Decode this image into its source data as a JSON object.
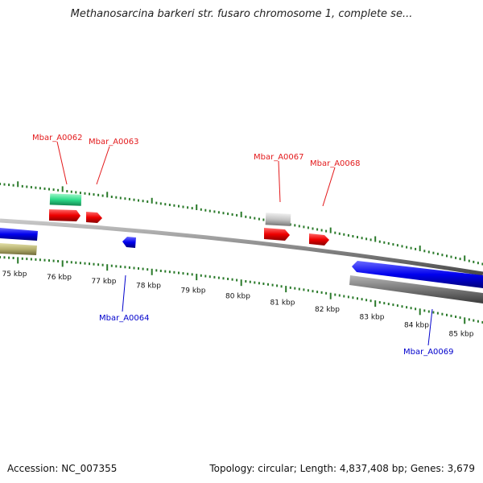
{
  "title": "Methanosarcina barkeri str. fusaro chromosome 1, complete se...",
  "footer": {
    "accession": "Accession: NC_007355",
    "topology": "Topology: circular;",
    "length": "Length: 4,837,408 bp;",
    "genes": "Genes: 3,679"
  },
  "colors": {
    "backbone": "#8a8a8a",
    "forward_gene": "#e31a1c",
    "reverse_gene": "#0000cc",
    "rna_gene": "#2ecc71",
    "pseudogene": "#bbbbbb",
    "other_feature": "#b5b06e",
    "dark_feature": "#777777",
    "tick": "#2a7a2a"
  },
  "scale_labels": [
    "75 kbp",
    "76 kbp",
    "77 kbp",
    "78 kbp",
    "79 kbp",
    "80 kbp",
    "81 kbp",
    "82 kbp",
    "83 kbp",
    "84 kbp",
    "85 kbp"
  ],
  "gene_labels": [
    {
      "text": "Mbar_A0062",
      "strand": "forward"
    },
    {
      "text": "Mbar_A0063",
      "strand": "forward"
    },
    {
      "text": "Mbar_A0067",
      "strand": "forward"
    },
    {
      "text": "Mbar_A0068",
      "strand": "forward"
    },
    {
      "text": "Mbar_A0064",
      "strand": "reverse"
    },
    {
      "text": "Mbar_A0069",
      "strand": "reverse"
    }
  ]
}
